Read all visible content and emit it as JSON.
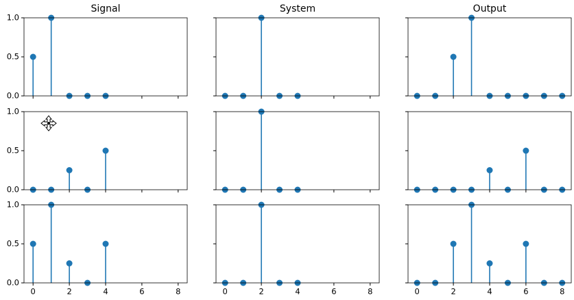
{
  "chart_data": [
    {
      "type": "stem",
      "title": "Signal",
      "x": [
        0,
        1,
        2,
        3,
        4
      ],
      "values": [
        0.5,
        1,
        0,
        0,
        0
      ],
      "color": "#1f77b4",
      "xlim": [
        -0.5,
        8.5
      ],
      "ylim": [
        0,
        1
      ],
      "yticks": [
        {
          "value": 0,
          "label": "0.0"
        },
        0.5,
        {
          "value": 1,
          "label": "1.0"
        }
      ]
    },
    {
      "type": "stem",
      "title": "System",
      "x": [
        0,
        1,
        2,
        3,
        4
      ],
      "values": [
        0,
        0,
        1,
        0,
        0
      ],
      "color": "#1f77b4",
      "xlim": [
        -0.5,
        8.5
      ],
      "ylim": [
        0,
        1
      ]
    },
    {
      "type": "stem",
      "title": "Output",
      "x": [
        0,
        1,
        2,
        3,
        4,
        5,
        6,
        7,
        8
      ],
      "values": [
        0,
        0,
        0.5,
        1,
        0,
        0,
        0,
        0,
        0
      ],
      "color": "#1f77b4",
      "xlim": [
        -0.5,
        8.5
      ],
      "ylim": [
        0,
        1
      ]
    },
    {
      "type": "stem",
      "x": [
        0,
        1,
        2,
        3,
        4
      ],
      "values": [
        0,
        0,
        0.25,
        0,
        0.5
      ],
      "color": "#1f77b4",
      "xlim": [
        -0.5,
        8.5
      ],
      "ylim": [
        0,
        1
      ],
      "yticks": [
        {
          "value": 0,
          "label": "0.0"
        },
        0.5,
        {
          "value": 1,
          "label": "1.0"
        }
      ]
    },
    {
      "type": "stem",
      "x": [
        0,
        1,
        2,
        3,
        4
      ],
      "values": [
        0,
        0,
        1,
        0,
        0
      ],
      "color": "#1f77b4",
      "xlim": [
        -0.5,
        8.5
      ],
      "ylim": [
        0,
        1
      ]
    },
    {
      "type": "stem",
      "x": [
        0,
        1,
        2,
        3,
        4,
        5,
        6,
        7,
        8
      ],
      "values": [
        0,
        0,
        0,
        0,
        0.25,
        0,
        0.5,
        0,
        0
      ],
      "color": "#1f77b4",
      "xlim": [
        -0.5,
        8.5
      ],
      "ylim": [
        0,
        1
      ]
    },
    {
      "type": "stem",
      "x": [
        0,
        1,
        2,
        3,
        4
      ],
      "values": [
        0.5,
        1,
        0.25,
        0,
        0.5
      ],
      "color": "#1f77b4",
      "xlim": [
        -0.5,
        8.5
      ],
      "ylim": [
        0,
        1
      ],
      "xticks": [
        0,
        2,
        4,
        6,
        8
      ],
      "yticks": [
        {
          "value": 0,
          "label": "0.0"
        },
        0.5,
        {
          "value": 1,
          "label": "1.0"
        }
      ]
    },
    {
      "type": "stem",
      "x": [
        0,
        1,
        2,
        3,
        4
      ],
      "values": [
        0,
        0,
        1,
        0,
        0
      ],
      "color": "#1f77b4",
      "xlim": [
        -0.5,
        8.5
      ],
      "ylim": [
        0,
        1
      ],
      "xticks": [
        0,
        2,
        4,
        6,
        8
      ]
    },
    {
      "type": "stem",
      "x": [
        0,
        1,
        2,
        3,
        4,
        5,
        6,
        7,
        8
      ],
      "values": [
        0,
        0,
        0.5,
        1,
        0.25,
        0,
        0.5,
        0,
        0
      ],
      "color": "#1f77b4",
      "xlim": [
        -0.5,
        8.5
      ],
      "ylim": [
        0,
        1
      ],
      "xticks": [
        0,
        2,
        4,
        6,
        8
      ]
    }
  ]
}
